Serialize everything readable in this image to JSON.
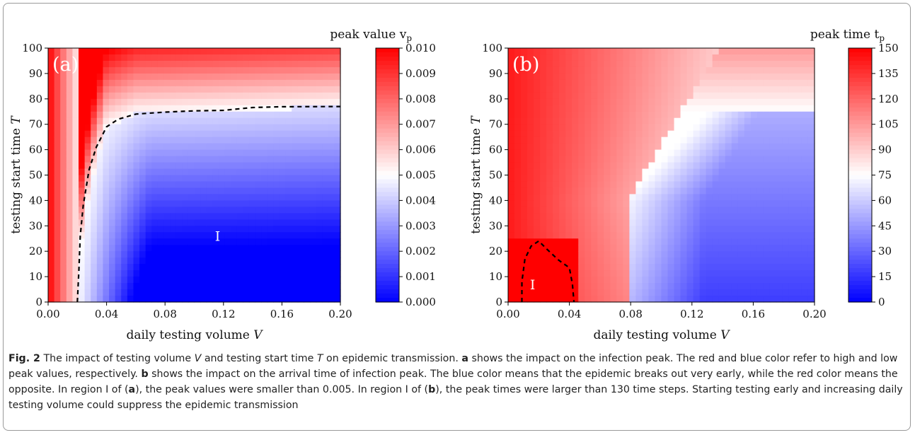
{
  "figure": {
    "caption": {
      "label": "Fig. 2",
      "segments": [
        {
          "t": "The impact of testing volume "
        },
        {
          "t": "V",
          "i": true
        },
        {
          "t": " and testing start time "
        },
        {
          "t": "T",
          "i": true
        },
        {
          "t": " on epidemic transmission. "
        },
        {
          "t": "a",
          "b": true
        },
        {
          "t": " shows the impact on the infection peak. The red and blue color refer to high and low peak values, respectively. "
        },
        {
          "t": "b",
          "b": true
        },
        {
          "t": " shows the impact on the arrival time of infection peak. The blue color means that the epidemic breaks out very early, while the red color means the opposite. In region I of ("
        },
        {
          "t": "a",
          "b": true
        },
        {
          "t": "), the peak values were smaller than 0.005. In region I of ("
        },
        {
          "t": "b",
          "b": true
        },
        {
          "t": "), the peak times were larger than 130 time steps. Starting testing early and increasing daily testing volume could suppress the epidemic transmission"
        }
      ]
    }
  },
  "chart_data": [
    {
      "type": "heatmap",
      "panel_label": "(a)",
      "xlabel": "daily testing volume",
      "xlabel_symbol": "V",
      "ylabel": "testing start time",
      "ylabel_symbol": "T",
      "xlim": [
        0,
        0.2
      ],
      "ylim": [
        0,
        100
      ],
      "x_ticks": [
        "0.00",
        "0.04",
        "0.08",
        "0.12",
        "0.16",
        "0.20"
      ],
      "y_ticks": [
        "0",
        "10",
        "20",
        "30",
        "40",
        "50",
        "60",
        "70",
        "80",
        "90",
        "100"
      ],
      "colorbar_label": "peak value v",
      "colorbar_label_sub": "p",
      "colorbar_range": [
        0,
        0.01
      ],
      "colorbar_ticks": [
        "0.000",
        "0.001",
        "0.002",
        "0.003",
        "0.004",
        "0.005",
        "0.006",
        "0.007",
        "0.008",
        "0.009",
        "0.010"
      ],
      "colormap": [
        "#0000ff",
        "#ffffff",
        "#ff0000"
      ],
      "region_label": "I",
      "region_label_pos": [
        0.116,
        26
      ],
      "contour_level": 0.005,
      "contour": [
        [
          0.02,
          0
        ],
        [
          0.021,
          12
        ],
        [
          0.022,
          26
        ],
        [
          0.024,
          38
        ],
        [
          0.028,
          52
        ],
        [
          0.033,
          61
        ],
        [
          0.04,
          69
        ],
        [
          0.048,
          72
        ],
        [
          0.06,
          74
        ],
        [
          0.08,
          74.8
        ],
        [
          0.1,
          75.3
        ],
        [
          0.12,
          75.5
        ],
        [
          0.14,
          76.6
        ],
        [
          0.16,
          76.9
        ],
        [
          0.2,
          77
        ]
      ]
    },
    {
      "type": "heatmap",
      "panel_label": "(b)",
      "xlabel": "daily testing volume",
      "xlabel_symbol": "V",
      "ylabel": "testing start time",
      "ylabel_symbol": "T",
      "xlim": [
        0,
        0.2
      ],
      "ylim": [
        0,
        100
      ],
      "x_ticks": [
        "0.00",
        "0.04",
        "0.08",
        "0.12",
        "0.16",
        "0.20"
      ],
      "y_ticks": [
        "0",
        "10",
        "20",
        "30",
        "40",
        "50",
        "60",
        "70",
        "80",
        "90",
        "100"
      ],
      "colorbar_label": "peak time t",
      "colorbar_label_sub": "p",
      "colorbar_range": [
        0,
        150
      ],
      "colorbar_ticks": [
        "0",
        "15",
        "30",
        "45",
        "60",
        "75",
        "90",
        "105",
        "120",
        "135",
        "150"
      ],
      "colormap": [
        "#0000ff",
        "#ffffff",
        "#ff0000"
      ],
      "region_label": "I",
      "region_label_pos": [
        0.016,
        7
      ],
      "contour_level": 130,
      "contour": [
        [
          0.009,
          0
        ],
        [
          0.009,
          8
        ],
        [
          0.011,
          17
        ],
        [
          0.015,
          22
        ],
        [
          0.02,
          24
        ],
        [
          0.025,
          21
        ],
        [
          0.033,
          16.5
        ],
        [
          0.04,
          13.5
        ],
        [
          0.042,
          7
        ],
        [
          0.043,
          0
        ]
      ]
    }
  ]
}
